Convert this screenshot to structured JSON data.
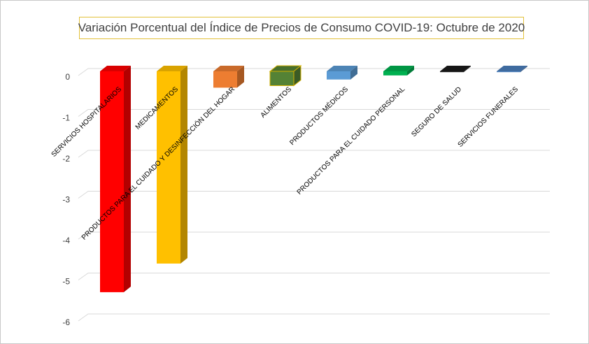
{
  "chart_data": {
    "type": "bar",
    "title": "Variación Porcentual del Índice de Precios de Consumo COVID-19: Octubre de 2020",
    "xlabel": "",
    "ylabel": "",
    "ylim": [
      -6,
      0
    ],
    "yticks": [
      "0",
      "-1",
      "-2",
      "-3",
      "-4",
      "-5",
      "-6"
    ],
    "grid": true,
    "categories": [
      "SERVICIOS HOSPITALARIOS",
      "MEDICAMENTOS",
      "PRODUCTOS PARA EL CUIDADO Y DESINFECCIÓN DEL HOGAR",
      "ALIMENTOS",
      "PRODUCTOS MÉDICOS",
      "PRODUCTOS PARA EL CUIDADO PERSONAL",
      "SEGURO DE SALUD",
      "SERVICIOS FUNERALES"
    ],
    "values": [
      -5.4,
      -4.7,
      -0.4,
      -0.35,
      -0.2,
      -0.1,
      -0.02,
      -0.02
    ],
    "colors": [
      "#ff0000",
      "#ffc000",
      "#ed7d31",
      "#548235",
      "#5b9bd5",
      "#00b050",
      "#1a1a1a",
      "#4a7ebb"
    ]
  }
}
